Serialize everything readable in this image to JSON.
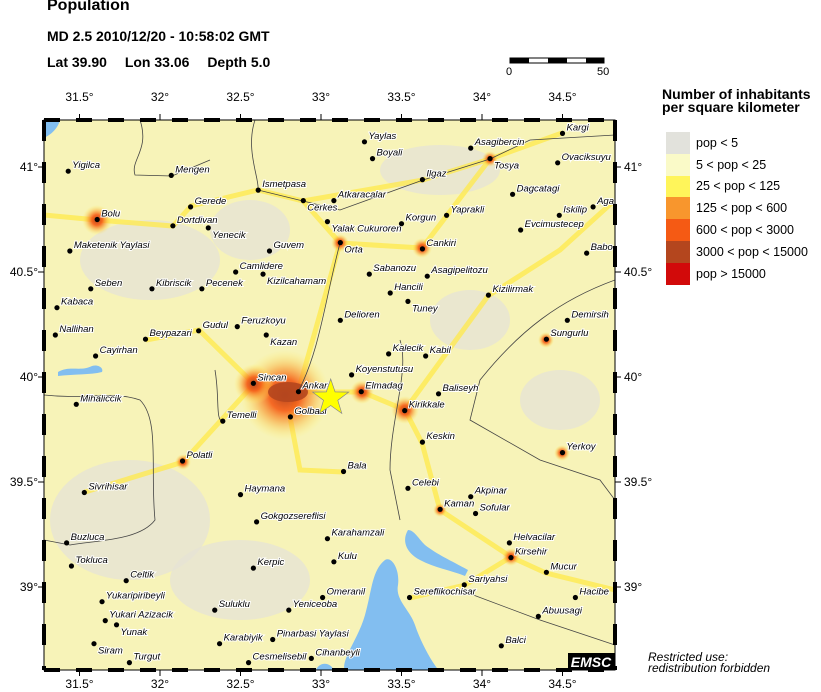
{
  "header": {
    "title": "Population",
    "event": "MD 2.5  2010/12/20 - 10:58:02 GMT",
    "lat": "Lat 39.90",
    "lon": "Lon  33.06",
    "depth": "Depth  5.0"
  },
  "scale_bar": {
    "start_label": "0",
    "end_label": "50"
  },
  "legend": {
    "title_line1": "Number of inhabitants",
    "title_line2": "per square kilometer",
    "items": [
      {
        "label": "pop < 5",
        "color": "#e2e2dc"
      },
      {
        "label": "5 < pop < 25",
        "color": "#fafac8"
      },
      {
        "label": "25 < pop < 125",
        "color": "#fff55a"
      },
      {
        "label": "125 < pop < 600",
        "color": "#f8962d"
      },
      {
        "label": "600 < pop < 3000",
        "color": "#f55a14"
      },
      {
        "label": "3000 < pop < 15000",
        "color": "#b4461e"
      },
      {
        "label": "pop > 15000",
        "color": "#d20a0a"
      }
    ]
  },
  "map": {
    "lon_ticks": [
      "31.5°",
      "32°",
      "32.5°",
      "33°",
      "33.5°",
      "34°",
      "34.5°"
    ],
    "lon_values": [
      31.5,
      32,
      32.5,
      33,
      33.5,
      34,
      34.5
    ],
    "lat_ticks": [
      "41°",
      "40.5°",
      "40°",
      "39.5°",
      "39°"
    ],
    "lat_values": [
      41,
      40.5,
      40,
      39.5,
      39
    ],
    "epicenter": {
      "lat": 39.9,
      "lon": 33.06,
      "icon": "star-icon",
      "color": "#ffff00"
    },
    "water_color": "#82bef0",
    "cities": [
      {
        "name": "Yigilca",
        "lon": 31.43,
        "lat": 40.98
      },
      {
        "name": "Mengen",
        "lon": 32.07,
        "lat": 40.96
      },
      {
        "name": "Ismetpasa",
        "lon": 32.61,
        "lat": 40.89
      },
      {
        "name": "Cerkes",
        "lon": 32.89,
        "lat": 40.84
      },
      {
        "name": "Gerede",
        "lon": 32.19,
        "lat": 40.81
      },
      {
        "name": "Bolu",
        "lon": 31.61,
        "lat": 40.75
      },
      {
        "name": "Dortdivan",
        "lon": 32.08,
        "lat": 40.72
      },
      {
        "name": "Yenecik",
        "lon": 32.3,
        "lat": 40.71
      },
      {
        "name": "Maketenik Yaylasi",
        "lon": 31.44,
        "lat": 40.6
      },
      {
        "name": "Guvem",
        "lon": 32.68,
        "lat": 40.6
      },
      {
        "name": "Camlidere",
        "lon": 32.47,
        "lat": 40.5
      },
      {
        "name": "Kizilcahamam",
        "lon": 32.64,
        "lat": 40.49
      },
      {
        "name": "Seben",
        "lon": 31.57,
        "lat": 40.42
      },
      {
        "name": "Kibriscik",
        "lon": 31.95,
        "lat": 40.42
      },
      {
        "name": "Pecenek",
        "lon": 32.26,
        "lat": 40.42
      },
      {
        "name": "Kabaca",
        "lon": 31.36,
        "lat": 40.33
      },
      {
        "name": "Gudul",
        "lon": 32.24,
        "lat": 40.22
      },
      {
        "name": "Feruzkoyu",
        "lon": 32.48,
        "lat": 40.24
      },
      {
        "name": "Kazan",
        "lon": 32.66,
        "lat": 40.2
      },
      {
        "name": "Nallihan",
        "lon": 31.35,
        "lat": 40.2
      },
      {
        "name": "Beypazari",
        "lon": 31.91,
        "lat": 40.18
      },
      {
        "name": "Cayirhan",
        "lon": 31.6,
        "lat": 40.1
      },
      {
        "name": "Yaylas",
        "lon": 33.27,
        "lat": 41.12
      },
      {
        "name": "Boyali",
        "lon": 33.32,
        "lat": 41.04
      },
      {
        "name": "Asagibercin",
        "lon": 33.93,
        "lat": 41.09
      },
      {
        "name": "Tosya",
        "lon": 34.05,
        "lat": 41.04
      },
      {
        "name": "Kargi",
        "lon": 34.5,
        "lat": 41.16
      },
      {
        "name": "Ovaciksuyu",
        "lon": 34.47,
        "lat": 41.02
      },
      {
        "name": "Ilgaz",
        "lon": 33.63,
        "lat": 40.94
      },
      {
        "name": "Atkaracalar",
        "lon": 33.08,
        "lat": 40.84
      },
      {
        "name": "Yalak Cukuroren",
        "lon": 33.04,
        "lat": 40.74
      },
      {
        "name": "Korgun",
        "lon": 33.5,
        "lat": 40.73
      },
      {
        "name": "Yaprakli",
        "lon": 33.78,
        "lat": 40.77
      },
      {
        "name": "Dagcatagi",
        "lon": 34.19,
        "lat": 40.87
      },
      {
        "name": "Aga",
        "lon": 34.69,
        "lat": 40.81
      },
      {
        "name": "Iskilip",
        "lon": 34.48,
        "lat": 40.77
      },
      {
        "name": "Evcimustecep",
        "lon": 34.24,
        "lat": 40.7
      },
      {
        "name": "Orta",
        "lon": 33.12,
        "lat": 40.64
      },
      {
        "name": "Cankiri",
        "lon": 33.63,
        "lat": 40.61
      },
      {
        "name": "Babo",
        "lon": 34.65,
        "lat": 40.59
      },
      {
        "name": "Sabanozu",
        "lon": 33.3,
        "lat": 40.49
      },
      {
        "name": "Asagipelitozu",
        "lon": 33.66,
        "lat": 40.48
      },
      {
        "name": "Hancili",
        "lon": 33.43,
        "lat": 40.4
      },
      {
        "name": "Tuney",
        "lon": 33.54,
        "lat": 40.36
      },
      {
        "name": "Kizilirmak",
        "lon": 34.04,
        "lat": 40.39
      },
      {
        "name": "Delioren",
        "lon": 33.12,
        "lat": 40.27
      },
      {
        "name": "Demirsih",
        "lon": 34.53,
        "lat": 40.27
      },
      {
        "name": "Sungurlu",
        "lon": 34.4,
        "lat": 40.18
      },
      {
        "name": "Kalecik",
        "lon": 33.42,
        "lat": 40.11
      },
      {
        "name": "Kabil",
        "lon": 33.65,
        "lat": 40.1
      },
      {
        "name": "Koyenstutusu",
        "lon": 33.19,
        "lat": 40.01
      },
      {
        "name": "Elmadag",
        "lon": 33.25,
        "lat": 39.93
      },
      {
        "name": "Baliseyh",
        "lon": 33.73,
        "lat": 39.92
      },
      {
        "name": "Kirikkale",
        "lon": 33.52,
        "lat": 39.84
      },
      {
        "name": "Sincan",
        "lon": 32.58,
        "lat": 39.97
      },
      {
        "name": "Ankara",
        "lon": 32.86,
        "lat": 39.93
      },
      {
        "name": "Golbasi",
        "lon": 32.81,
        "lat": 39.81
      },
      {
        "name": "Temelli",
        "lon": 32.39,
        "lat": 39.79
      },
      {
        "name": "Mihaliccik",
        "lon": 31.48,
        "lat": 39.87
      },
      {
        "name": "Keskin",
        "lon": 33.63,
        "lat": 39.69
      },
      {
        "name": "Yerkoy",
        "lon": 34.5,
        "lat": 39.64
      },
      {
        "name": "Polatli",
        "lon": 32.14,
        "lat": 39.6
      },
      {
        "name": "Bala",
        "lon": 33.14,
        "lat": 39.55
      },
      {
        "name": "Sivrihisar",
        "lon": 31.53,
        "lat": 39.45
      },
      {
        "name": "Haymana",
        "lon": 32.5,
        "lat": 39.44
      },
      {
        "name": "Celebi",
        "lon": 33.54,
        "lat": 39.47
      },
      {
        "name": "Akpinar",
        "lon": 33.93,
        "lat": 39.43
      },
      {
        "name": "Kaman",
        "lon": 33.74,
        "lat": 39.37
      },
      {
        "name": "Sofular",
        "lon": 33.96,
        "lat": 39.35
      },
      {
        "name": "Gokgozsereflisi",
        "lon": 32.6,
        "lat": 39.31
      },
      {
        "name": "Buzluca",
        "lon": 31.42,
        "lat": 39.21
      },
      {
        "name": "Karahamzali",
        "lon": 33.04,
        "lat": 39.23
      },
      {
        "name": "Helvacilar",
        "lon": 34.17,
        "lat": 39.21
      },
      {
        "name": "Kirsehir",
        "lon": 34.18,
        "lat": 39.14
      },
      {
        "name": "Tokluca",
        "lon": 31.45,
        "lat": 39.1
      },
      {
        "name": "Kerpic",
        "lon": 32.58,
        "lat": 39.09
      },
      {
        "name": "Celtik",
        "lon": 31.79,
        "lat": 39.03
      },
      {
        "name": "Kulu",
        "lon": 33.08,
        "lat": 39.12
      },
      {
        "name": "Mucur",
        "lon": 34.4,
        "lat": 39.07
      },
      {
        "name": "Sariyahsi",
        "lon": 33.89,
        "lat": 39.01
      },
      {
        "name": "Omeranil",
        "lon": 33.01,
        "lat": 38.95
      },
      {
        "name": "Hacibe",
        "lon": 34.58,
        "lat": 38.95
      },
      {
        "name": "Sereflikochisar",
        "lon": 33.55,
        "lat": 38.95
      },
      {
        "name": "Yukaripiribeyli",
        "lon": 31.64,
        "lat": 38.93
      },
      {
        "name": "Yeniceoba",
        "lon": 32.8,
        "lat": 38.89
      },
      {
        "name": "Suluklu",
        "lon": 32.34,
        "lat": 38.89
      },
      {
        "name": "Abuusagi",
        "lon": 34.35,
        "lat": 38.86
      },
      {
        "name": "Yukari Azizacik",
        "lon": 31.66,
        "lat": 38.84
      },
      {
        "name": "Yunak",
        "lon": 31.73,
        "lat": 38.82
      },
      {
        "name": "Siram",
        "lon": 31.59,
        "lat": 38.73
      },
      {
        "name": "Karabiyik",
        "lon": 32.37,
        "lat": 38.73
      },
      {
        "name": "Pinarbasi Yaylasi",
        "lon": 32.7,
        "lat": 38.75
      },
      {
        "name": "Balci",
        "lon": 34.12,
        "lat": 38.72
      },
      {
        "name": "Turgut",
        "lon": 31.81,
        "lat": 38.64
      },
      {
        "name": "Cesmelisebil",
        "lon": 32.55,
        "lat": 38.64
      },
      {
        "name": "Cihanbeyli",
        "lon": 32.94,
        "lat": 38.66
      }
    ]
  },
  "logo": "EMSC",
  "restricted_line1": "Restricted use:",
  "restricted_line2": "redistribution forbidden"
}
